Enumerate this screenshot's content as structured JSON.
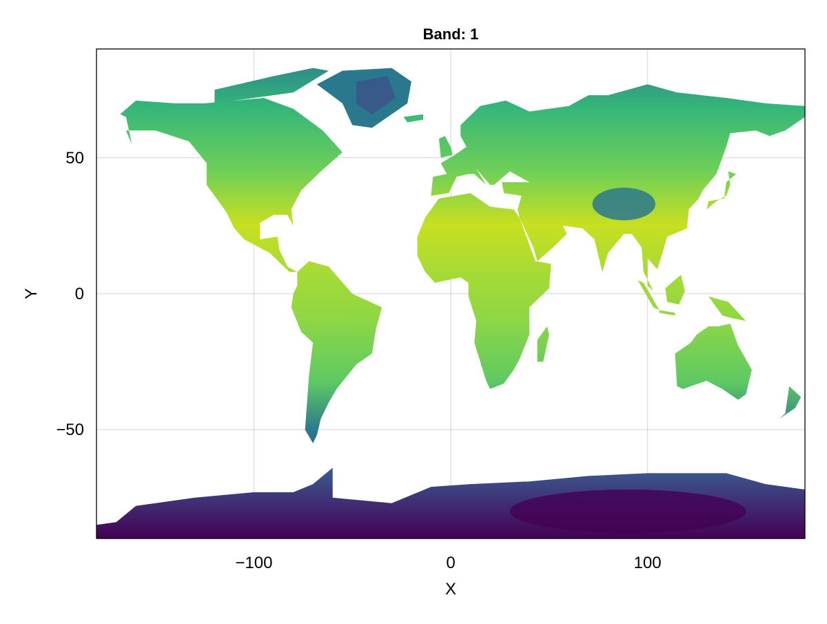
{
  "chart_data": {
    "type": "heatmap",
    "title": "Band: 1",
    "xlabel": "X",
    "ylabel": "Y",
    "xlim": [
      -180,
      180
    ],
    "ylim": [
      -90,
      90
    ],
    "xticks": [
      {
        "value": -100,
        "label": "−100"
      },
      {
        "value": 0,
        "label": "0"
      },
      {
        "value": 100,
        "label": "100"
      }
    ],
    "yticks": [
      {
        "value": 50,
        "label": "50"
      },
      {
        "value": 0,
        "label": "0"
      },
      {
        "value": -50,
        "label": "−50"
      }
    ],
    "grid": true,
    "colormap": "viridis",
    "colors": [
      "#440154",
      "#3b528b",
      "#2a788e",
      "#21918c",
      "#35b779",
      "#7ad151",
      "#c8e020",
      "#fde725"
    ],
    "background": "#ffffff"
  }
}
